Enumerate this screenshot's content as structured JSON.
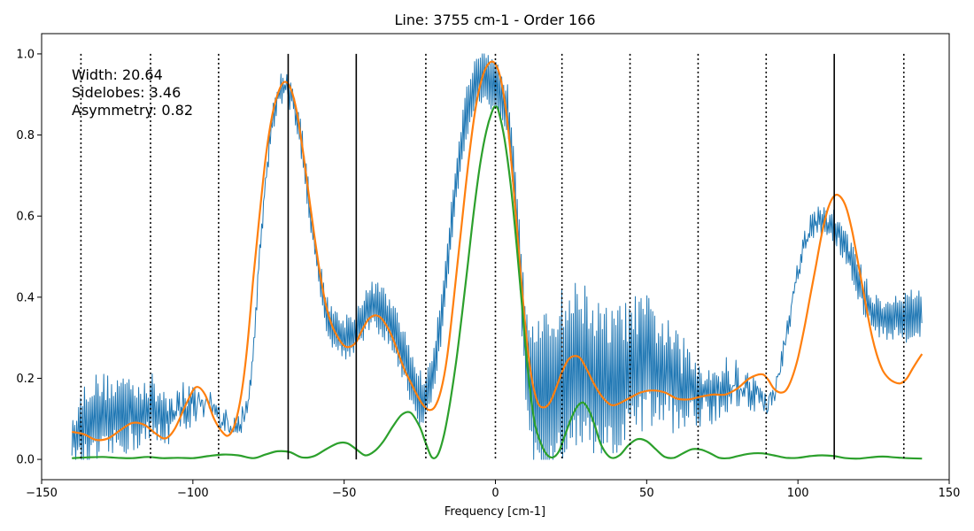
{
  "chart_data": {
    "type": "line",
    "title": "Line: 3755 cm-1 - Order 166",
    "xlabel": "Frequency [cm-1]",
    "ylabel": "",
    "xlim": [
      -150,
      150
    ],
    "ylim": [
      -0.05,
      1.05
    ],
    "xticks": [
      -150,
      -100,
      -50,
      0,
      50,
      100,
      150
    ],
    "yticks": [
      0.0,
      0.2,
      0.4,
      0.6,
      0.8,
      1.0
    ],
    "xtick_labels": [
      "−150",
      "−100",
      "−50",
      "0",
      "50",
      "100",
      "150"
    ],
    "ytick_labels": [
      "0.0",
      "0.2",
      "0.4",
      "0.6",
      "0.8",
      "1.0"
    ],
    "grid": false,
    "annotations": [
      "Width: 20.64",
      "Sidelobes: 3.46",
      "Asymmetry: 0.82"
    ],
    "vlines_solid": [
      -68.5,
      -46,
      112
    ],
    "vlines_dotted": [
      -137,
      -114,
      -91.5,
      -23,
      0,
      22,
      44.5,
      67,
      89.5,
      135
    ],
    "series": [
      {
        "color": "#1f77b4",
        "style": "noisy-measured",
        "x": [
          -140,
          -135,
          -130,
          -125,
          -120,
          -115,
          -110,
          -105,
          -100,
          -95,
          -90,
          -85,
          -82,
          -80,
          -78,
          -76,
          -74,
          -72,
          -70,
          -68,
          -66,
          -64,
          -62,
          -60,
          -58,
          -56,
          -54,
          -52,
          -50,
          -48,
          -46,
          -44,
          -42,
          -40,
          -38,
          -36,
          -34,
          -32,
          -30,
          -28,
          -26,
          -24,
          -22,
          -20,
          -18,
          -16,
          -14,
          -12,
          -10,
          -8,
          -6,
          -4,
          -2,
          0,
          2,
          4,
          6,
          8,
          10,
          12,
          14,
          16,
          18,
          20,
          22,
          24,
          26,
          28,
          30,
          32,
          34,
          36,
          38,
          40,
          45,
          50,
          55,
          60,
          65,
          70,
          75,
          80,
          85,
          88,
          90,
          92,
          94,
          96,
          98,
          100,
          102,
          104,
          106,
          108,
          110,
          112,
          114,
          116,
          118,
          120,
          122,
          124,
          126,
          128,
          130,
          132,
          134,
          136,
          138,
          140,
          141
        ],
        "y": [
          0.05,
          0.09,
          0.1,
          0.11,
          0.12,
          0.12,
          0.11,
          0.12,
          0.14,
          0.13,
          0.1,
          0.08,
          0.12,
          0.26,
          0.5,
          0.68,
          0.82,
          0.9,
          0.92,
          0.91,
          0.86,
          0.78,
          0.66,
          0.54,
          0.44,
          0.37,
          0.33,
          0.31,
          0.3,
          0.31,
          0.32,
          0.35,
          0.37,
          0.38,
          0.37,
          0.35,
          0.32,
          0.29,
          0.25,
          0.21,
          0.16,
          0.14,
          0.17,
          0.24,
          0.34,
          0.48,
          0.62,
          0.74,
          0.84,
          0.9,
          0.93,
          0.94,
          0.93,
          0.92,
          0.9,
          0.86,
          0.72,
          0.5,
          0.28,
          0.18,
          0.14,
          0.13,
          0.15,
          0.18,
          0.2,
          0.21,
          0.22,
          0.24,
          0.22,
          0.2,
          0.19,
          0.18,
          0.18,
          0.19,
          0.22,
          0.24,
          0.22,
          0.19,
          0.17,
          0.17,
          0.18,
          0.18,
          0.17,
          0.15,
          0.14,
          0.16,
          0.22,
          0.3,
          0.38,
          0.46,
          0.53,
          0.57,
          0.58,
          0.59,
          0.58,
          0.57,
          0.55,
          0.52,
          0.48,
          0.44,
          0.4,
          0.37,
          0.36,
          0.35,
          0.35,
          0.35,
          0.35,
          0.35,
          0.36,
          0.36,
          0.37
        ],
        "noise_amp": [
          0.04,
          0.12,
          0.12,
          0.12,
          0.13,
          0.14,
          0.13,
          0.12,
          0.12,
          0.12,
          0.11,
          0.08,
          0.08,
          0.06,
          0.05,
          0.06,
          0.07,
          0.07,
          0.07,
          0.07,
          0.07,
          0.07,
          0.06,
          0.06,
          0.06,
          0.06,
          0.06,
          0.06,
          0.06,
          0.06,
          0.06,
          0.06,
          0.06,
          0.06,
          0.06,
          0.06,
          0.06,
          0.06,
          0.06,
          0.06,
          0.06,
          0.06,
          0.05,
          0.05,
          0.05,
          0.05,
          0.05,
          0.05,
          0.05,
          0.05,
          0.05,
          0.05,
          0.05,
          0.05,
          0.05,
          0.05,
          0.06,
          0.08,
          0.1,
          0.15,
          0.17,
          0.18,
          0.18,
          0.18,
          0.18,
          0.18,
          0.18,
          0.18,
          0.18,
          0.18,
          0.18,
          0.18,
          0.18,
          0.18,
          0.18,
          0.18,
          0.17,
          0.16,
          0.15,
          0.14,
          0.14,
          0.14,
          0.13,
          0.12,
          0.1,
          0.08,
          0.08,
          0.07,
          0.07,
          0.07,
          0.07,
          0.07,
          0.07,
          0.07,
          0.07,
          0.07,
          0.07,
          0.07,
          0.07,
          0.07,
          0.07,
          0.06,
          0.06,
          0.06,
          0.06,
          0.06,
          0.06,
          0.06,
          0.06,
          0.06,
          0.06
        ]
      },
      {
        "color": "#ff7f0e",
        "style": "smooth",
        "x": [
          -140,
          -136,
          -132,
          -128,
          -124,
          -120,
          -116,
          -112,
          -109,
          -106,
          -102,
          -99,
          -96,
          -93,
          -90,
          -88,
          -86,
          -84,
          -82,
          -80,
          -78,
          -76,
          -74,
          -72,
          -70,
          -68,
          -66,
          -64,
          -62,
          -60,
          -58,
          -56,
          -54,
          -52,
          -50,
          -48,
          -46,
          -44,
          -42,
          -40,
          -38,
          -36,
          -34,
          -32,
          -30,
          -28,
          -26,
          -24,
          -22,
          -20,
          -18,
          -16,
          -14,
          -12,
          -10,
          -8,
          -6,
          -4,
          -2,
          0,
          2,
          4,
          6,
          8,
          10,
          12,
          14,
          16,
          18,
          20,
          22,
          24,
          26,
          28,
          30,
          32,
          34,
          36,
          38,
          40,
          44,
          48,
          52,
          56,
          60,
          64,
          68,
          72,
          76,
          80,
          84,
          88,
          90,
          92,
          94,
          96,
          98,
          100,
          102,
          104,
          106,
          108,
          110,
          112,
          114,
          116,
          118,
          120,
          122,
          124,
          126,
          128,
          130,
          132,
          134,
          136,
          138,
          141
        ],
        "y": [
          0.068,
          0.062,
          0.048,
          0.052,
          0.072,
          0.09,
          0.085,
          0.062,
          0.052,
          0.075,
          0.14,
          0.178,
          0.16,
          0.1,
          0.065,
          0.06,
          0.09,
          0.16,
          0.28,
          0.45,
          0.6,
          0.74,
          0.84,
          0.9,
          0.93,
          0.92,
          0.87,
          0.78,
          0.67,
          0.56,
          0.46,
          0.38,
          0.33,
          0.3,
          0.28,
          0.278,
          0.29,
          0.32,
          0.345,
          0.355,
          0.35,
          0.33,
          0.3,
          0.26,
          0.22,
          0.19,
          0.16,
          0.135,
          0.122,
          0.13,
          0.17,
          0.25,
          0.38,
          0.52,
          0.66,
          0.79,
          0.89,
          0.95,
          0.978,
          0.975,
          0.93,
          0.83,
          0.67,
          0.49,
          0.32,
          0.2,
          0.14,
          0.128,
          0.14,
          0.175,
          0.215,
          0.245,
          0.255,
          0.25,
          0.225,
          0.195,
          0.168,
          0.148,
          0.135,
          0.135,
          0.15,
          0.165,
          0.17,
          0.165,
          0.15,
          0.148,
          0.155,
          0.16,
          0.16,
          0.175,
          0.2,
          0.21,
          0.198,
          0.175,
          0.165,
          0.17,
          0.2,
          0.25,
          0.32,
          0.4,
          0.48,
          0.56,
          0.62,
          0.65,
          0.648,
          0.62,
          0.56,
          0.48,
          0.4,
          0.32,
          0.26,
          0.22,
          0.2,
          0.19,
          0.188,
          0.2,
          0.225,
          0.26
        ]
      },
      {
        "color": "#2ca02c",
        "style": "smooth",
        "x": [
          -140,
          -135,
          -130,
          -125,
          -120,
          -115,
          -110,
          -105,
          -100,
          -95,
          -90,
          -85,
          -80,
          -76,
          -72,
          -68,
          -64,
          -60,
          -56,
          -52,
          -49,
          -46,
          -43,
          -40,
          -37,
          -34,
          -31,
          -28,
          -25,
          -23,
          -21,
          -19,
          -17,
          -15,
          -13,
          -11,
          -9,
          -7,
          -5,
          -3,
          -1,
          0,
          1,
          3,
          5,
          7,
          9,
          11,
          13,
          15,
          17,
          19,
          21,
          23,
          25,
          27,
          29,
          31,
          33,
          35,
          38,
          41,
          44,
          47,
          50,
          53,
          56,
          59,
          62,
          65,
          68,
          71,
          74,
          77,
          80,
          84,
          88,
          92,
          96,
          100,
          104,
          108,
          112,
          116,
          120,
          124,
          128,
          132,
          136,
          141
        ],
        "y": [
          0.003,
          0.005,
          0.006,
          0.004,
          0.003,
          0.006,
          0.003,
          0.004,
          0.003,
          0.008,
          0.012,
          0.01,
          0.003,
          0.012,
          0.02,
          0.018,
          0.005,
          0.008,
          0.025,
          0.04,
          0.04,
          0.025,
          0.01,
          0.02,
          0.045,
          0.08,
          0.11,
          0.115,
          0.08,
          0.04,
          0.005,
          0.012,
          0.06,
          0.14,
          0.24,
          0.36,
          0.49,
          0.62,
          0.73,
          0.81,
          0.86,
          0.87,
          0.86,
          0.79,
          0.68,
          0.53,
          0.36,
          0.2,
          0.09,
          0.04,
          0.012,
          0.005,
          0.02,
          0.06,
          0.1,
          0.13,
          0.14,
          0.12,
          0.08,
          0.035,
          0.005,
          0.01,
          0.035,
          0.05,
          0.045,
          0.025,
          0.006,
          0.004,
          0.015,
          0.025,
          0.024,
          0.015,
          0.004,
          0.003,
          0.008,
          0.014,
          0.015,
          0.01,
          0.004,
          0.004,
          0.008,
          0.01,
          0.008,
          0.003,
          0.002,
          0.005,
          0.007,
          0.005,
          0.003,
          0.002
        ]
      }
    ]
  }
}
